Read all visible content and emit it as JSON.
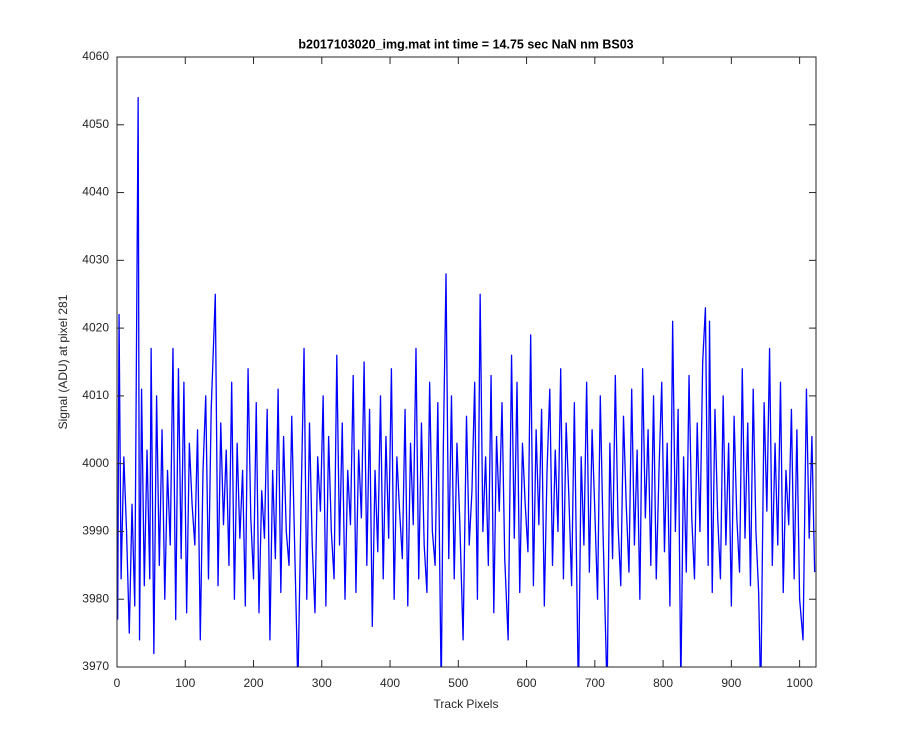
{
  "chart_data": {
    "type": "line",
    "title": "b2017103020_img.mat int time = 14.75 sec  NaN nm BS03",
    "xlabel": "Track Pixels",
    "ylabel": "Signal (ADU) at pixel 281",
    "xlim": [
      0,
      1024
    ],
    "ylim": [
      3970,
      4060
    ],
    "xticks": [
      0,
      100,
      200,
      300,
      400,
      500,
      600,
      700,
      800,
      900,
      1000
    ],
    "yticks": [
      3970,
      3980,
      3990,
      4000,
      4010,
      4020,
      4030,
      4040,
      4050,
      4060
    ],
    "grid": false,
    "x": [
      1,
      3,
      6,
      10,
      14,
      18,
      22,
      26,
      31,
      33,
      36,
      40,
      44,
      48,
      50,
      54,
      58,
      62,
      66,
      70,
      74,
      78,
      82,
      86,
      90,
      94,
      98,
      102,
      106,
      110,
      114,
      118,
      122,
      126,
      130,
      134,
      138,
      144,
      148,
      152,
      156,
      160,
      164,
      168,
      172,
      176,
      180,
      184,
      188,
      192,
      196,
      200,
      204,
      208,
      212,
      216,
      220,
      224,
      228,
      232,
      236,
      240,
      244,
      248,
      252,
      256,
      260,
      265,
      270,
      274,
      278,
      282,
      286,
      290,
      294,
      298,
      302,
      306,
      310,
      314,
      318,
      322,
      326,
      330,
      334,
      338,
      342,
      346,
      350,
      354,
      358,
      362,
      366,
      370,
      374,
      378,
      382,
      386,
      390,
      394,
      398,
      402,
      406,
      410,
      414,
      418,
      422,
      426,
      430,
      434,
      438,
      442,
      446,
      450,
      454,
      458,
      462,
      466,
      470,
      475,
      478,
      482,
      486,
      490,
      494,
      498,
      502,
      507,
      512,
      516,
      520,
      524,
      528,
      532,
      536,
      540,
      544,
      548,
      552,
      556,
      560,
      564,
      568,
      573,
      578,
      582,
      586,
      590,
      594,
      598,
      602,
      606,
      610,
      614,
      618,
      622,
      626,
      630,
      634,
      638,
      642,
      646,
      650,
      654,
      658,
      662,
      666,
      670,
      676,
      680,
      684,
      688,
      692,
      696,
      700,
      704,
      708,
      712,
      718,
      722,
      726,
      730,
      734,
      738,
      742,
      746,
      750,
      754,
      758,
      762,
      766,
      770,
      774,
      778,
      782,
      786,
      790,
      794,
      798,
      802,
      806,
      810,
      814,
      818,
      822,
      826,
      830,
      834,
      838,
      842,
      846,
      850,
      854,
      858,
      862,
      866,
      868,
      872,
      876,
      880,
      884,
      888,
      892,
      896,
      900,
      904,
      908,
      912,
      916,
      920,
      924,
      928,
      932,
      936,
      940,
      943,
      948,
      952,
      956,
      960,
      964,
      968,
      972,
      976,
      980,
      984,
      988,
      992,
      996,
      1000,
      1005,
      1010,
      1014,
      1018,
      1022
    ],
    "series": [
      {
        "name": "signal",
        "color": "#0000ff",
        "values": [
          3977,
          4022,
          3983,
          4001,
          3990,
          3975,
          3994,
          3979,
          4054,
          3974,
          4011,
          3982,
          4002,
          3983,
          4017,
          3972,
          4010,
          3985,
          4005,
          3980,
          3999,
          3988,
          4017,
          3977,
          4014,
          3986,
          4012,
          3978,
          4003,
          3994,
          3988,
          4005,
          3974,
          3999,
          4010,
          3983,
          4008,
          4025,
          3982,
          4006,
          3991,
          4002,
          3985,
          4012,
          3980,
          4003,
          3989,
          3999,
          3979,
          4014,
          3992,
          3983,
          4009,
          3978,
          3996,
          3989,
          4008,
          3974,
          3999,
          3986,
          4011,
          3981,
          4004,
          3990,
          3985,
          4007,
          3989,
          3967,
          3996,
          4017,
          3980,
          4006,
          3988,
          3978,
          4001,
          3993,
          4010,
          3979,
          4004,
          3990,
          3983,
          4016,
          3988,
          4006,
          3980,
          3999,
          3991,
          4013,
          3981,
          4002,
          3992,
          4015,
          3985,
          4008,
          3976,
          3999,
          3987,
          4010,
          3983,
          4004,
          3989,
          4014,
          3980,
          4001,
          3993,
          3986,
          4008,
          3979,
          4003,
          3991,
          4017,
          3983,
          4006,
          3988,
          3981,
          4012,
          3990,
          3985,
          4009,
          3966,
          4002,
          4028,
          3986,
          4010,
          3983,
          4003,
          3992,
          3974,
          4007,
          3988,
          3996,
          4012,
          3980,
          4025,
          3990,
          4001,
          3985,
          4013,
          3978,
          4004,
          3993,
          4009,
          3986,
          3974,
          4016,
          3989,
          4012,
          3981,
          4003,
          3994,
          3987,
          4019,
          3982,
          4005,
          3991,
          4008,
          3979,
          3999,
          4011,
          3985,
          4002,
          3990,
          4014,
          3983,
          4006,
          3995,
          3982,
          4009,
          3965,
          4001,
          3988,
          4012,
          3984,
          4005,
          3993,
          3980,
          4010,
          3990,
          3966,
          4003,
          3986,
          4013,
          3991,
          3982,
          4007,
          3994,
          3984,
          4011,
          3988,
          4002,
          3980,
          4014,
          3992,
          4005,
          3985,
          4010,
          3983,
          3999,
          4012,
          3987,
          4003,
          3979,
          4021,
          3990,
          4008,
          3967,
          4001,
          3984,
          4013,
          3992,
          3983,
          4006,
          3990,
          4015,
          4023,
          3985,
          4021,
          3981,
          4008,
          3992,
          3983,
          4010,
          3988,
          4003,
          3979,
          4007,
          3992,
          3984,
          4014,
          3989,
          4006,
          3982,
          4011,
          3990,
          3981,
          3965,
          4009,
          3993,
          4017,
          3985,
          4003,
          3988,
          4012,
          3981,
          3999,
          3991,
          4008,
          3983,
          4005,
          3980,
          3974,
          4011,
          3989,
          4004,
          3984
        ]
      }
    ]
  }
}
